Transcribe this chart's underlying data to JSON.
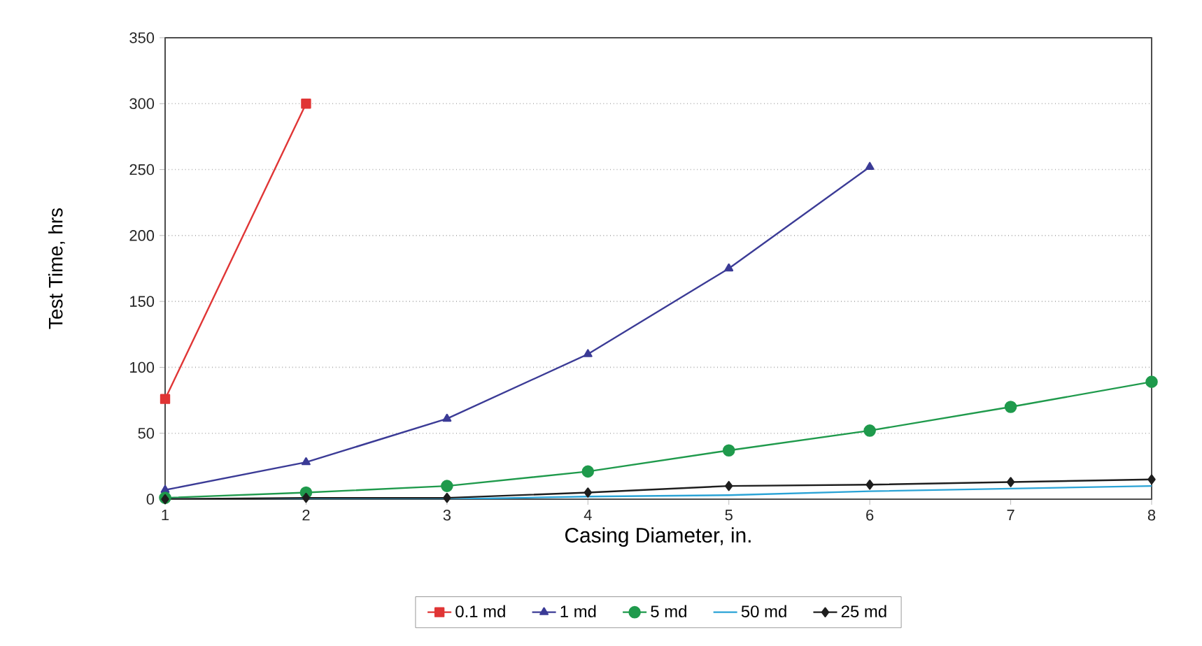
{
  "chart_data": {
    "type": "line",
    "xlabel": "Casing Diameter, in.",
    "ylabel": "Test Time, hrs",
    "x": [
      1,
      2,
      3,
      4,
      5,
      6,
      7,
      8
    ],
    "xlim": [
      1,
      8
    ],
    "xticks": [
      1,
      2,
      3,
      4,
      5,
      6,
      7,
      8
    ],
    "ylim": [
      0,
      350
    ],
    "yticks": [
      0,
      50,
      100,
      150,
      200,
      250,
      300,
      350
    ],
    "grid": "y",
    "legend": "bottom",
    "series": [
      {
        "name": "0.1 md",
        "color": "#e03535",
        "marker": "square",
        "values": [
          76,
          300,
          null,
          null,
          null,
          null,
          null,
          null
        ]
      },
      {
        "name": "1 md",
        "color": "#3b3b96",
        "marker": "triangle",
        "values": [
          7,
          28,
          61,
          110,
          175,
          252,
          null,
          null
        ]
      },
      {
        "name": "5 md",
        "color": "#1f9a4c",
        "marker": "circle",
        "values": [
          1,
          5,
          10,
          21,
          37,
          52,
          70,
          89
        ]
      },
      {
        "name": "50 md",
        "color": "#2aa3d6",
        "marker": "none",
        "values": [
          0,
          0,
          0,
          2,
          3,
          6,
          8,
          10
        ]
      },
      {
        "name": "25 md",
        "color": "#1e1e1e",
        "marker": "diamond",
        "values": [
          0,
          1,
          1,
          5,
          10,
          11,
          13,
          15
        ]
      }
    ]
  }
}
